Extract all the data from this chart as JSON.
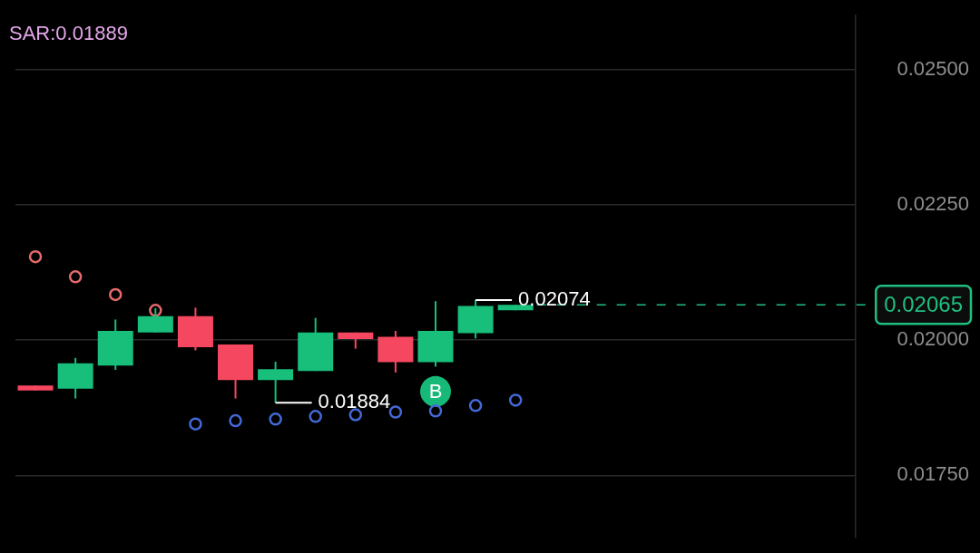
{
  "chart_data": {
    "type": "candlestick",
    "categories": [
      null,
      null,
      null,
      null,
      null,
      null,
      null,
      null,
      null,
      null,
      null,
      null,
      null,
      null,
      null,
      null,
      null,
      null,
      null,
      null,
      null
    ],
    "ohlc": [
      [
        0.01916,
        0.01916,
        0.01907,
        0.01907
      ],
      [
        0.0191,
        0.01967,
        0.01892,
        0.01957
      ],
      [
        0.01953,
        0.02038,
        0.01945,
        0.02017
      ],
      [
        0.02014,
        0.02059,
        0.02014,
        0.02044
      ],
      [
        0.02044,
        0.0206,
        0.01981,
        0.01987
      ],
      [
        0.01992,
        0.01992,
        0.01892,
        0.01926
      ],
      [
        0.01926,
        0.0196,
        0.01884,
        0.01946
      ],
      [
        0.01943,
        0.02041,
        0.01943,
        0.02014
      ],
      [
        0.02014,
        0.02014,
        0.01984,
        0.02002
      ],
      [
        0.02006,
        0.02017,
        0.0194,
        0.01959
      ],
      [
        0.01959,
        0.02072,
        0.01951,
        0.02017
      ],
      [
        0.02013,
        0.02074,
        0.02003,
        0.02063
      ],
      [
        0.02055,
        0.02065,
        0.02055,
        0.02065
      ],
      null,
      null,
      null,
      null,
      null,
      null,
      null,
      null
    ],
    "colors": [
      "#f64760",
      "#17bf7b",
      "#17bf7b",
      "#17bf7b",
      "#f64760",
      "#f64760",
      "#17bf7b",
      "#17bf7b",
      "#f64760",
      "#f64760",
      "#17bf7b",
      "#17bf7b",
      "#17bf7b",
      null,
      null,
      null,
      null,
      null,
      null,
      null,
      null
    ],
    "series": [
      {
        "type": "scatter",
        "color": "#e56b6b",
        "values": [
          0.02154,
          0.02117,
          0.02084,
          0.02055,
          null,
          null,
          null,
          null,
          null,
          null,
          null,
          null,
          null,
          null,
          null,
          null,
          null,
          null,
          null,
          null,
          null
        ]
      },
      {
        "type": "scatter",
        "color": "#4469d6",
        "values": [
          null,
          null,
          null,
          null,
          0.01845,
          0.01851,
          0.01854,
          0.01859,
          0.01862,
          0.01867,
          0.01869,
          0.01879,
          0.01889,
          null,
          null,
          null,
          null,
          null,
          null,
          null,
          null
        ]
      },
      {
        "type": "scatter",
        "name": "B",
        "color": "#17b978",
        "values": [
          null,
          null,
          null,
          null,
          null,
          null,
          null,
          null,
          null,
          null,
          0.01905,
          null,
          null,
          null,
          null,
          null,
          null,
          null,
          null,
          null,
          null
        ]
      }
    ],
    "ylim": [
      0.01635,
      0.026
    ],
    "yticks": [
      {
        "value": 0.0175,
        "label": "0.01750"
      },
      {
        "value": 0.02,
        "label": "0.02000"
      },
      {
        "value": 0.0225,
        "label": "0.02250"
      },
      {
        "value": 0.025,
        "label": "0.02500"
      }
    ],
    "grid": "y",
    "tick_labels": "y",
    "marker": "circle",
    "annotations": [
      "SAR:0.01889",
      "0.02074",
      "0.01884"
    ],
    "ref_lines": [
      {
        "axis": "y",
        "value": 0.02065,
        "label": "0.02065",
        "color": "#1fbf80",
        "line_style": "dashed"
      }
    ]
  }
}
